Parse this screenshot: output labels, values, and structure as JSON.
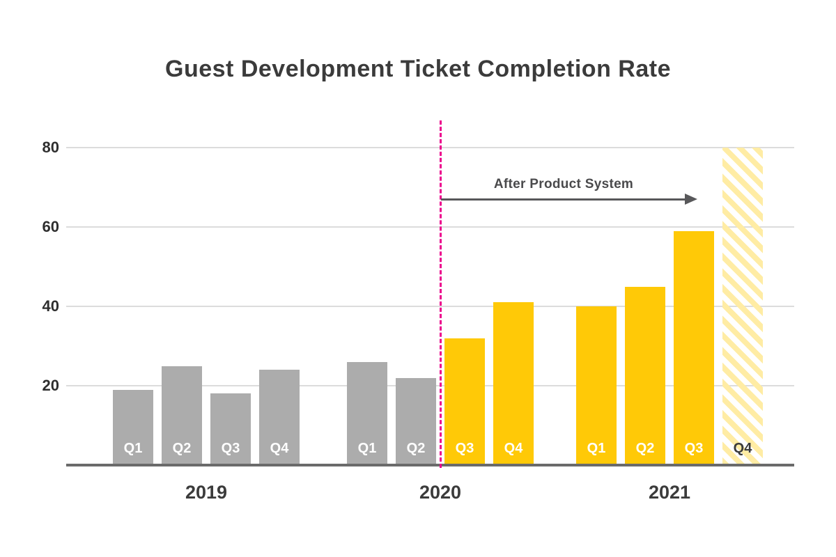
{
  "title": "Guest Development Ticket Completion Rate",
  "colors": {
    "bar_before": "#acacac",
    "bar_after": "#ffc907",
    "bar_projected_stripe": "#ffeca4",
    "gridline": "#dcdcdc",
    "axis": "#6b6b6b",
    "divider": "#ec008c",
    "annotation": "#4a4a4c",
    "title_text": "#3b3b3b"
  },
  "chart_data": {
    "type": "bar",
    "title": "Guest Development Ticket Completion Rate",
    "xlabel": "",
    "ylabel": "",
    "ylim": [
      0,
      80
    ],
    "yticks": [
      20,
      40,
      60,
      80
    ],
    "grid": true,
    "legend": "none",
    "groups": [
      {
        "year": "2019",
        "bars": [
          {
            "label": "Q1",
            "value": 19,
            "phase": "before"
          },
          {
            "label": "Q2",
            "value": 25,
            "phase": "before"
          },
          {
            "label": "Q3",
            "value": 18,
            "phase": "before"
          },
          {
            "label": "Q4",
            "value": 24,
            "phase": "before"
          }
        ]
      },
      {
        "year": "2020",
        "bars": [
          {
            "label": "Q1",
            "value": 26,
            "phase": "before"
          },
          {
            "label": "Q2",
            "value": 22,
            "phase": "before"
          },
          {
            "label": "Q3",
            "value": 32,
            "phase": "after"
          },
          {
            "label": "Q4",
            "value": 41,
            "phase": "after"
          }
        ]
      },
      {
        "year": "2021",
        "bars": [
          {
            "label": "Q1",
            "value": 40,
            "phase": "after"
          },
          {
            "label": "Q2",
            "value": 45,
            "phase": "after"
          },
          {
            "label": "Q3",
            "value": 59,
            "phase": "after"
          },
          {
            "label": "Q4",
            "value": 80,
            "phase": "projected"
          }
        ]
      }
    ],
    "annotation": {
      "text": "After Product System",
      "divider_position": "between 2020 Q2 and 2020 Q3",
      "divider_style": "dashed"
    }
  }
}
